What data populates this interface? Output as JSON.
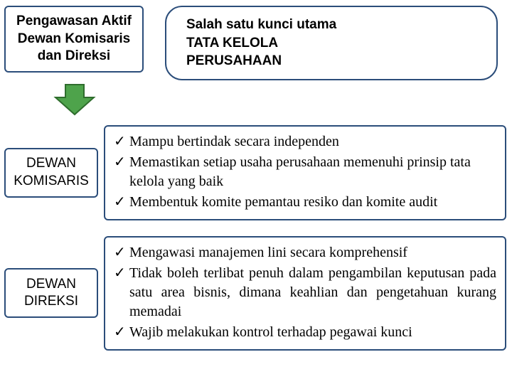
{
  "colors": {
    "border_blue": "#2b4d7a",
    "bg_white": "#ffffff",
    "text": "#000000",
    "arrow_fill": "#4ea34b",
    "arrow_stroke": "#2f6d2d"
  },
  "fonts": {
    "title_size": 19,
    "label_size": 19,
    "bullet_size": 20
  },
  "top_left": {
    "line1": "Pengawasan Aktif",
    "line2": "Dewan Komisaris",
    "line3": "dan Direksi"
  },
  "top_right": {
    "line1": "Salah satu kunci utama",
    "line2": "TATA KELOLA",
    "line3": "PERUSAHAAN"
  },
  "section1": {
    "label_line1": "DEWAN",
    "label_line2": "KOMISARIS",
    "bullets": [
      "Mampu bertindak secara independen",
      "Memastikan setiap usaha perusahaan memenuhi prinsip tata kelola yang baik",
      "Membentuk komite pemantau resiko dan komite audit"
    ]
  },
  "section2": {
    "label_line1": "DEWAN",
    "label_line2": "DIREKSI",
    "bullets": [
      "Mengawasi manajemen lini secara komprehensif",
      "Tidak boleh terlibat penuh dalam pengambilan keputusan pada satu area bisnis, dimana keahlian dan pengetahuan kurang memadai",
      "Wajib melakukan kontrol terhadap pegawai kunci"
    ]
  },
  "checkmark": "✓"
}
